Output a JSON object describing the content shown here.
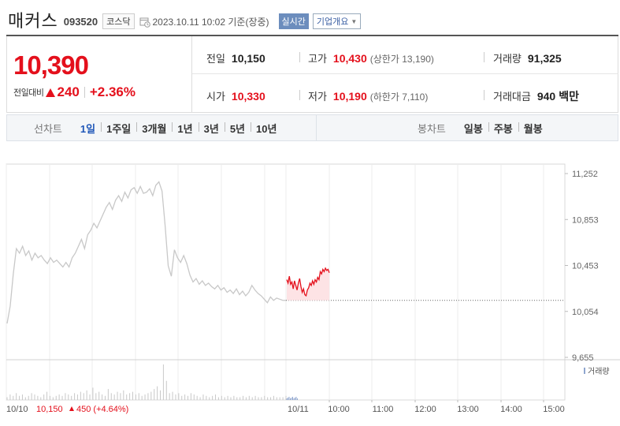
{
  "header": {
    "company_name": "매커스",
    "code": "093520",
    "market": "코스닥",
    "timestamp": "2023.10.11 10:02",
    "basis": "기준(장중)",
    "realtime_label": "실시간",
    "company_info_label": "기업개요"
  },
  "quote": {
    "price": "10,390",
    "change_label": "전일대비",
    "change": "240",
    "change_pct": "+2.36%",
    "stats": {
      "prev_close_label": "전일",
      "prev_close": "10,150",
      "high_label": "고가",
      "high": "10,430",
      "upper_limit": "(상한가 13,190)",
      "volume_label": "거래량",
      "volume": "91,325",
      "open_label": "시가",
      "open": "10,330",
      "low_label": "저가",
      "low": "10,190",
      "lower_limit": "(하한가 7,110)",
      "amount_label": "거래대금",
      "amount": "940",
      "amount_unit": "백만"
    }
  },
  "tabs": {
    "line_title": "선차트",
    "line_items": [
      "1일",
      "1주일",
      "3개월",
      "1년",
      "3년",
      "5년",
      "10년"
    ],
    "line_active": "1일",
    "candle_title": "봉차트",
    "candle_items": [
      "일봉",
      "주봉",
      "월봉"
    ]
  },
  "colors": {
    "up": "#e4101c",
    "accent": "#1e56b8",
    "history_line": "#c8c8c8"
  },
  "chart_data": {
    "type": "line",
    "y_ticks": [
      "11,252",
      "10,853",
      "10,453",
      "10,054",
      "9,655"
    ],
    "ylim": [
      9655,
      11252
    ],
    "x_labels": [
      "10/10",
      "10/11",
      "10:00",
      "11:00",
      "12:00",
      "13:00",
      "14:00",
      "15:00"
    ],
    "volume_label": "거래량",
    "prev_day_summary": {
      "date": "10/10",
      "close": "10,150",
      "change": "450",
      "change_pct": "(+4.64%)"
    },
    "reference_price": 10150,
    "series": [
      {
        "values": [
          9950,
          10100,
          10380,
          10600,
          10560,
          10620,
          10540,
          10580,
          10500,
          10560,
          10520,
          10540,
          10500,
          10470,
          10520,
          10480,
          10500,
          10470,
          10440,
          10480,
          10440,
          10520,
          10560,
          10620,
          10680,
          10600,
          10720,
          10760,
          10820,
          10780,
          10840,
          10900,
          10960,
          11000,
          10940,
          11020,
          11060,
          11010,
          11090,
          11040,
          11110,
          11130,
          11080,
          11140,
          11080,
          11090,
          11120,
          11060,
          11150,
          11180,
          11100,
          10800,
          10450,
          10360,
          10590,
          10520,
          10480,
          10540,
          10470,
          10370,
          10310,
          10340,
          10290,
          10320,
          10280,
          10300,
          10270,
          10250,
          10280,
          10240,
          10260,
          10220,
          10240,
          10210,
          10250,
          10200,
          10230,
          10190,
          10220,
          10280,
          10240,
          10210,
          10190,
          10160,
          10130,
          10180,
          10150,
          10170,
          10160,
          10150,
          10150
        ]
      },
      {
        "values": [
          10330,
          10300,
          10360,
          10290,
          10310,
          10250,
          10320,
          10280,
          10240,
          10300,
          10340,
          10270,
          10220,
          10250,
          10200,
          10190,
          10240,
          10260,
          10300,
          10280,
          10320,
          10290,
          10330,
          10310,
          10350,
          10330,
          10400,
          10380,
          10420,
          10400,
          10430,
          10410,
          10420,
          10390
        ]
      }
    ],
    "volume": [
      2,
      4,
      3,
      5,
      3,
      4,
      2,
      3,
      5,
      4,
      3,
      2,
      4,
      6,
      3,
      2,
      3,
      4,
      3,
      5,
      4,
      3,
      5,
      4,
      6,
      5,
      7,
      4,
      9,
      5,
      6,
      4,
      3,
      8,
      5,
      4,
      6,
      5,
      7,
      4,
      5,
      6,
      4,
      5,
      3,
      4,
      5,
      6,
      8,
      10,
      7,
      26,
      14,
      5,
      6,
      4,
      5,
      3,
      4,
      3,
      5,
      4,
      3,
      2,
      4,
      3,
      2,
      3,
      4,
      2,
      3,
      2,
      3,
      2,
      3,
      2,
      2,
      3,
      2,
      3,
      2,
      3,
      2,
      2,
      3,
      2,
      2,
      3,
      2,
      2,
      2,
      3
    ]
  }
}
